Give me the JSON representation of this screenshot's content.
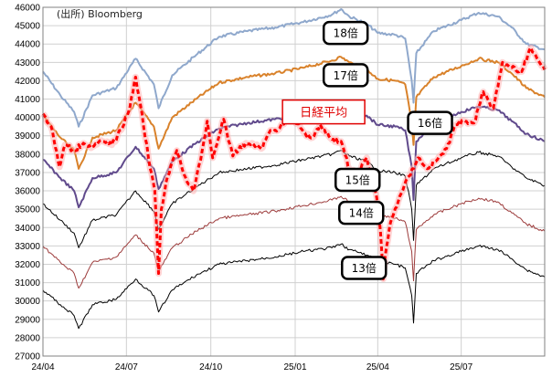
{
  "source_note": "(出所) Bloomberg",
  "chart_data": {
    "type": "line",
    "title": "",
    "xlabel": "",
    "ylabel": "",
    "ylim": [
      27000,
      46000
    ],
    "y_ticks": [
      27000,
      28000,
      29000,
      30000,
      31000,
      32000,
      33000,
      34000,
      35000,
      36000,
      37000,
      38000,
      39000,
      40000,
      41000,
      42000,
      43000,
      44000,
      45000,
      46000
    ],
    "x_ticks": [
      "24/04",
      "24/07",
      "24/10",
      "25/01",
      "25/04",
      "25/07"
    ],
    "x_range": [
      "2024-04-01",
      "2025-09-30"
    ],
    "grid": true,
    "legend": "none",
    "series": [
      {
        "name": "18倍",
        "color": "#8FA8CC",
        "width": 2,
        "dash": "",
        "values": [
          [
            "2024-04-01",
            42500
          ],
          [
            "2024-04-20",
            41200
          ],
          [
            "2024-05-05",
            40300
          ],
          [
            "2024-05-10",
            39500
          ],
          [
            "2024-05-25",
            41200
          ],
          [
            "2024-06-20",
            41600
          ],
          [
            "2024-07-11",
            43200
          ],
          [
            "2024-07-31",
            41800
          ],
          [
            "2024-08-05",
            40500
          ],
          [
            "2024-08-20",
            42300
          ],
          [
            "2024-09-15",
            43400
          ],
          [
            "2024-10-10",
            44400
          ],
          [
            "2024-11-10",
            44700
          ],
          [
            "2024-12-10",
            44900
          ],
          [
            "2025-01-10",
            45200
          ],
          [
            "2025-02-10",
            45600
          ],
          [
            "2025-02-20",
            45900
          ],
          [
            "2025-03-01",
            45500
          ],
          [
            "2025-03-20",
            45100
          ],
          [
            "2025-04-01",
            44600
          ],
          [
            "2025-04-20",
            44500
          ],
          [
            "2025-05-01",
            44300
          ],
          [
            "2025-05-08",
            42000
          ],
          [
            "2025-05-10",
            40800
          ],
          [
            "2025-05-13",
            43500
          ],
          [
            "2025-06-01",
            44700
          ],
          [
            "2025-07-01",
            45300
          ],
          [
            "2025-07-20",
            45700
          ],
          [
            "2025-08-10",
            45500
          ],
          [
            "2025-08-25",
            44900
          ],
          [
            "2025-09-10",
            44000
          ],
          [
            "2025-09-30",
            43700
          ]
        ]
      },
      {
        "name": "17倍",
        "color": "#D9822B",
        "width": 2,
        "dash": "",
        "values": [
          [
            "2024-04-01",
            40100
          ],
          [
            "2024-04-20",
            38900
          ],
          [
            "2024-05-05",
            38200
          ],
          [
            "2024-05-10",
            37200
          ],
          [
            "2024-05-25",
            38900
          ],
          [
            "2024-06-20",
            39300
          ],
          [
            "2024-07-11",
            40800
          ],
          [
            "2024-07-31",
            39500
          ],
          [
            "2024-08-05",
            38300
          ],
          [
            "2024-08-20",
            40000
          ],
          [
            "2024-09-15",
            41000
          ],
          [
            "2024-10-10",
            41900
          ],
          [
            "2024-11-10",
            42200
          ],
          [
            "2024-12-10",
            42400
          ],
          [
            "2025-01-10",
            42700
          ],
          [
            "2025-02-10",
            43100
          ],
          [
            "2025-02-20",
            43300
          ],
          [
            "2025-03-01",
            43000
          ],
          [
            "2025-03-20",
            42600
          ],
          [
            "2025-04-01",
            42100
          ],
          [
            "2025-04-20",
            42000
          ],
          [
            "2025-05-01",
            41800
          ],
          [
            "2025-05-08",
            39700
          ],
          [
            "2025-05-10",
            38500
          ],
          [
            "2025-05-13",
            41100
          ],
          [
            "2025-06-01",
            42200
          ],
          [
            "2025-07-01",
            42800
          ],
          [
            "2025-07-20",
            43200
          ],
          [
            "2025-08-10",
            43000
          ],
          [
            "2025-08-25",
            42400
          ],
          [
            "2025-09-10",
            41600
          ],
          [
            "2025-09-30",
            41100
          ]
        ]
      },
      {
        "name": "16倍",
        "color": "#604A8C",
        "width": 2,
        "dash": "",
        "values": [
          [
            "2024-04-01",
            37700
          ],
          [
            "2024-04-20",
            36700
          ],
          [
            "2024-05-05",
            36000
          ],
          [
            "2024-05-10",
            35100
          ],
          [
            "2024-05-25",
            36700
          ],
          [
            "2024-06-20",
            37000
          ],
          [
            "2024-07-11",
            38400
          ],
          [
            "2024-07-31",
            37200
          ],
          [
            "2024-08-05",
            36100
          ],
          [
            "2024-08-20",
            37600
          ],
          [
            "2024-09-15",
            38600
          ],
          [
            "2024-10-10",
            39400
          ],
          [
            "2024-11-10",
            39700
          ],
          [
            "2024-12-10",
            39900
          ],
          [
            "2025-01-10",
            40200
          ],
          [
            "2025-02-10",
            40500
          ],
          [
            "2025-02-20",
            40700
          ],
          [
            "2025-03-01",
            40400
          ],
          [
            "2025-03-20",
            40100
          ],
          [
            "2025-04-01",
            39600
          ],
          [
            "2025-04-20",
            39500
          ],
          [
            "2025-05-01",
            39300
          ],
          [
            "2025-05-08",
            37300
          ],
          [
            "2025-05-10",
            35500
          ],
          [
            "2025-05-13",
            38700
          ],
          [
            "2025-06-01",
            39700
          ],
          [
            "2025-07-01",
            40300
          ],
          [
            "2025-07-20",
            40600
          ],
          [
            "2025-08-10",
            40400
          ],
          [
            "2025-08-25",
            39800
          ],
          [
            "2025-09-10",
            39100
          ],
          [
            "2025-09-30",
            38700
          ]
        ]
      },
      {
        "name": "15倍",
        "color": "#000000",
        "width": 1,
        "dash": "",
        "values": [
          [
            "2024-04-01",
            35300
          ],
          [
            "2024-04-20",
            34400
          ],
          [
            "2024-05-05",
            33700
          ],
          [
            "2024-05-10",
            32900
          ],
          [
            "2024-05-25",
            34400
          ],
          [
            "2024-06-20",
            34700
          ],
          [
            "2024-07-11",
            36000
          ],
          [
            "2024-07-31",
            34900
          ],
          [
            "2024-08-05",
            33900
          ],
          [
            "2024-08-20",
            35300
          ],
          [
            "2024-09-15",
            36200
          ],
          [
            "2024-10-10",
            37000
          ],
          [
            "2024-11-10",
            37200
          ],
          [
            "2024-12-10",
            37400
          ],
          [
            "2025-01-10",
            37700
          ],
          [
            "2025-02-10",
            38000
          ],
          [
            "2025-02-20",
            38200
          ],
          [
            "2025-03-01",
            37900
          ],
          [
            "2025-03-20",
            37600
          ],
          [
            "2025-04-01",
            37100
          ],
          [
            "2025-04-20",
            37000
          ],
          [
            "2025-05-01",
            36800
          ],
          [
            "2025-05-08",
            35000
          ],
          [
            "2025-05-10",
            33300
          ],
          [
            "2025-05-13",
            36300
          ],
          [
            "2025-06-01",
            37200
          ],
          [
            "2025-07-01",
            37800
          ],
          [
            "2025-07-20",
            38100
          ],
          [
            "2025-08-10",
            37900
          ],
          [
            "2025-08-25",
            37300
          ],
          [
            "2025-09-10",
            36700
          ],
          [
            "2025-09-30",
            36300
          ]
        ]
      },
      {
        "name": "14倍",
        "color": "#9C3A3A",
        "width": 1,
        "dash": "",
        "values": [
          [
            "2024-04-01",
            33000
          ],
          [
            "2024-04-20",
            32100
          ],
          [
            "2024-05-05",
            31500
          ],
          [
            "2024-05-10",
            30700
          ],
          [
            "2024-05-25",
            32100
          ],
          [
            "2024-06-20",
            32400
          ],
          [
            "2024-07-11",
            33600
          ],
          [
            "2024-07-31",
            32600
          ],
          [
            "2024-08-05",
            31600
          ],
          [
            "2024-08-20",
            32900
          ],
          [
            "2024-09-15",
            33800
          ],
          [
            "2024-10-10",
            34500
          ],
          [
            "2024-11-10",
            34700
          ],
          [
            "2024-12-10",
            34900
          ],
          [
            "2025-01-10",
            35200
          ],
          [
            "2025-02-10",
            35500
          ],
          [
            "2025-02-20",
            35700
          ],
          [
            "2025-03-01",
            35400
          ],
          [
            "2025-03-20",
            35100
          ],
          [
            "2025-04-01",
            34700
          ],
          [
            "2025-04-20",
            34500
          ],
          [
            "2025-05-01",
            34300
          ],
          [
            "2025-05-08",
            32700
          ],
          [
            "2025-05-10",
            31100
          ],
          [
            "2025-05-13",
            33900
          ],
          [
            "2025-06-01",
            34700
          ],
          [
            "2025-07-01",
            35300
          ],
          [
            "2025-07-20",
            35600
          ],
          [
            "2025-08-10",
            35400
          ],
          [
            "2025-08-25",
            34800
          ],
          [
            "2025-09-10",
            34200
          ],
          [
            "2025-09-30",
            33800
          ]
        ]
      },
      {
        "name": "13倍",
        "color": "#000000",
        "width": 1,
        "dash": "",
        "values": [
          [
            "2024-04-01",
            30600
          ],
          [
            "2024-04-20",
            29800
          ],
          [
            "2024-05-05",
            29200
          ],
          [
            "2024-05-10",
            28500
          ],
          [
            "2024-05-25",
            29800
          ],
          [
            "2024-06-20",
            30100
          ],
          [
            "2024-07-11",
            31200
          ],
          [
            "2024-07-31",
            30300
          ],
          [
            "2024-08-05",
            29400
          ],
          [
            "2024-08-20",
            30600
          ],
          [
            "2024-09-15",
            31400
          ],
          [
            "2024-10-10",
            32000
          ],
          [
            "2024-11-10",
            32200
          ],
          [
            "2024-12-10",
            32400
          ],
          [
            "2025-01-10",
            32700
          ],
          [
            "2025-02-10",
            32900
          ],
          [
            "2025-02-20",
            33100
          ],
          [
            "2025-03-01",
            32800
          ],
          [
            "2025-03-20",
            32500
          ],
          [
            "2025-04-01",
            32200
          ],
          [
            "2025-04-20",
            32000
          ],
          [
            "2025-05-01",
            31800
          ],
          [
            "2025-05-08",
            30300
          ],
          [
            "2025-05-10",
            28800
          ],
          [
            "2025-05-13",
            31500
          ],
          [
            "2025-06-01",
            32200
          ],
          [
            "2025-07-01",
            32700
          ],
          [
            "2025-07-20",
            33000
          ],
          [
            "2025-08-10",
            32800
          ],
          [
            "2025-08-25",
            32300
          ],
          [
            "2025-09-10",
            31700
          ],
          [
            "2025-09-30",
            31300
          ]
        ]
      },
      {
        "name": "日経平均",
        "color": "#FF0000",
        "width": 3,
        "dash": "5,3",
        "values": [
          [
            "2024-04-01",
            40200
          ],
          [
            "2024-04-10",
            39500
          ],
          [
            "2024-04-19",
            37300
          ],
          [
            "2024-04-25",
            38500
          ],
          [
            "2024-05-05",
            38200
          ],
          [
            "2024-05-15",
            38600
          ],
          [
            "2024-05-25",
            38400
          ],
          [
            "2024-06-05",
            38700
          ],
          [
            "2024-06-15",
            38500
          ],
          [
            "2024-06-25",
            39300
          ],
          [
            "2024-07-05",
            40600
          ],
          [
            "2024-07-11",
            42200
          ],
          [
            "2024-07-18",
            40200
          ],
          [
            "2024-07-25",
            37800
          ],
          [
            "2024-08-01",
            36000
          ],
          [
            "2024-08-05",
            31500
          ],
          [
            "2024-08-08",
            35000
          ],
          [
            "2024-08-15",
            36800
          ],
          [
            "2024-08-25",
            38200
          ],
          [
            "2024-09-05",
            36500
          ],
          [
            "2024-09-12",
            36000
          ],
          [
            "2024-09-20",
            37700
          ],
          [
            "2024-09-27",
            39800
          ],
          [
            "2024-10-03",
            37800
          ],
          [
            "2024-10-15",
            39900
          ],
          [
            "2024-10-25",
            37900
          ],
          [
            "2024-11-05",
            38500
          ],
          [
            "2024-11-15",
            38600
          ],
          [
            "2024-11-25",
            38300
          ],
          [
            "2024-12-05",
            39300
          ],
          [
            "2024-12-15",
            39400
          ],
          [
            "2024-12-27",
            40200
          ],
          [
            "2025-01-10",
            39200
          ],
          [
            "2025-01-20",
            38900
          ],
          [
            "2025-01-28",
            39600
          ],
          [
            "2025-02-10",
            38800
          ],
          [
            "2025-02-20",
            38700
          ],
          [
            "2025-03-01",
            37200
          ],
          [
            "2025-03-10",
            36900
          ],
          [
            "2025-03-20",
            37800
          ],
          [
            "2025-03-31",
            35600
          ],
          [
            "2025-04-04",
            33800
          ],
          [
            "2025-04-07",
            31200
          ],
          [
            "2025-04-09",
            32400
          ],
          [
            "2025-04-15",
            34300
          ],
          [
            "2025-04-25",
            35700
          ],
          [
            "2025-05-05",
            36800
          ],
          [
            "2025-05-15",
            37800
          ],
          [
            "2025-05-25",
            37200
          ],
          [
            "2025-06-05",
            37700
          ],
          [
            "2025-06-15",
            38300
          ],
          [
            "2025-06-25",
            39600
          ],
          [
            "2025-07-05",
            39800
          ],
          [
            "2025-07-15",
            39700
          ],
          [
            "2025-07-25",
            41400
          ],
          [
            "2025-08-05",
            40500
          ],
          [
            "2025-08-15",
            43000
          ],
          [
            "2025-08-25",
            42700
          ],
          [
            "2025-09-05",
            42500
          ],
          [
            "2025-09-15",
            43800
          ],
          [
            "2025-09-30",
            42600
          ]
        ]
      }
    ],
    "annotations": [
      {
        "text": "18倍",
        "box": "rounded",
        "y": 44600,
        "x": "2025-02-25"
      },
      {
        "text": "17倍",
        "box": "rounded",
        "y": 42300,
        "x": "2025-02-25"
      },
      {
        "text": "日経平均",
        "box": "rect-red",
        "y": 40300,
        "x": "2025-02-01"
      },
      {
        "text": "16倍",
        "box": "rounded",
        "y": 39700,
        "x": "2025-05-28"
      },
      {
        "text": "15倍",
        "box": "rounded",
        "y": 36600,
        "x": "2025-03-10"
      },
      {
        "text": "14倍",
        "box": "rounded",
        "y": 34800,
        "x": "2025-03-14"
      },
      {
        "text": "13倍",
        "box": "rounded",
        "y": 31800,
        "x": "2025-03-17"
      }
    ]
  }
}
